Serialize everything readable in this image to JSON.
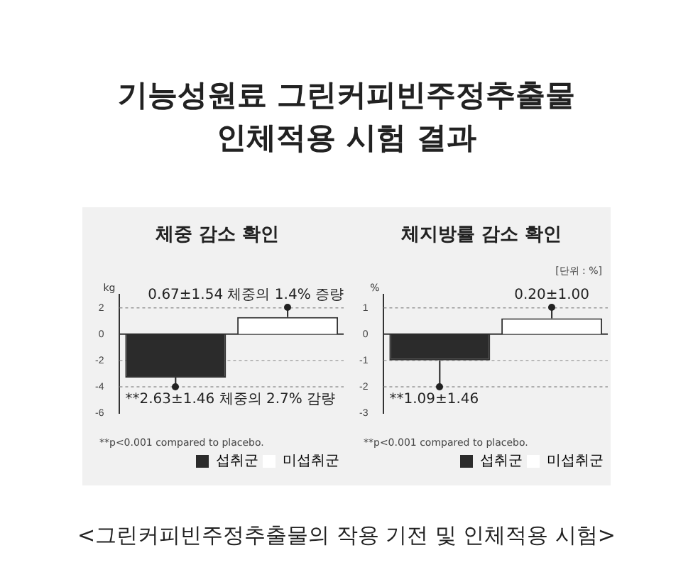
{
  "chart_data": [
    {
      "type": "bar",
      "title": "체중 감소 확인",
      "ylabel": "kg",
      "categories": [
        null,
        null
      ],
      "series": [
        {
          "name": "섭취군",
          "color": "#2b2b2b",
          "values": [
            -3.3,
            null
          ],
          "errors": [
            [
              -4,
              -3.3
            ],
            null
          ]
        },
        {
          "name": "미섭취군",
          "color": "#ffffff",
          "values": [
            null,
            1.3
          ],
          "errors": [
            null,
            [
              1.3,
              2
            ]
          ]
        }
      ],
      "ylim": [
        -6,
        3
      ],
      "yticks": [
        -6,
        -4,
        -2,
        0,
        2
      ],
      "grid": "y",
      "legend": "bottom right",
      "annotations": [
        "기능성원료 그린커피빈주정추출물\n인체적용 시험 결과",
        "0.67±1.54 체중의 1.4% 증량",
        "**2.63±1.46 체중의 2.7% 감량",
        "**p<0.001 compared to placebo."
      ]
    },
    {
      "type": "bar",
      "title": "체지방률 감소 확인",
      "ylabel": "%",
      "categories": [
        null,
        null
      ],
      "series": [
        {
          "name": "섭취군",
          "color": "#2b2b2b",
          "values": [
            -1.0,
            null
          ],
          "errors": [
            [
              -2,
              -1.0
            ],
            null
          ]
        },
        {
          "name": "미섭취군",
          "color": "#ffffff",
          "values": [
            null,
            0.6
          ],
          "errors": [
            null,
            [
              0.6,
              1
            ]
          ]
        }
      ],
      "ylim": [
        -3,
        1.5
      ],
      "yticks": [
        -3,
        -2,
        -1,
        0,
        1
      ],
      "grid": "y",
      "legend": "bottom right",
      "annotations": [
        "[단위 : %]",
        "0.20±1.00",
        "**1.09±1.46",
        "**p<0.001 compared to placebo.",
        "<그린커피빈주정추출물의 작용 기전 및 인체적용 시험>"
      ]
    }
  ]
}
